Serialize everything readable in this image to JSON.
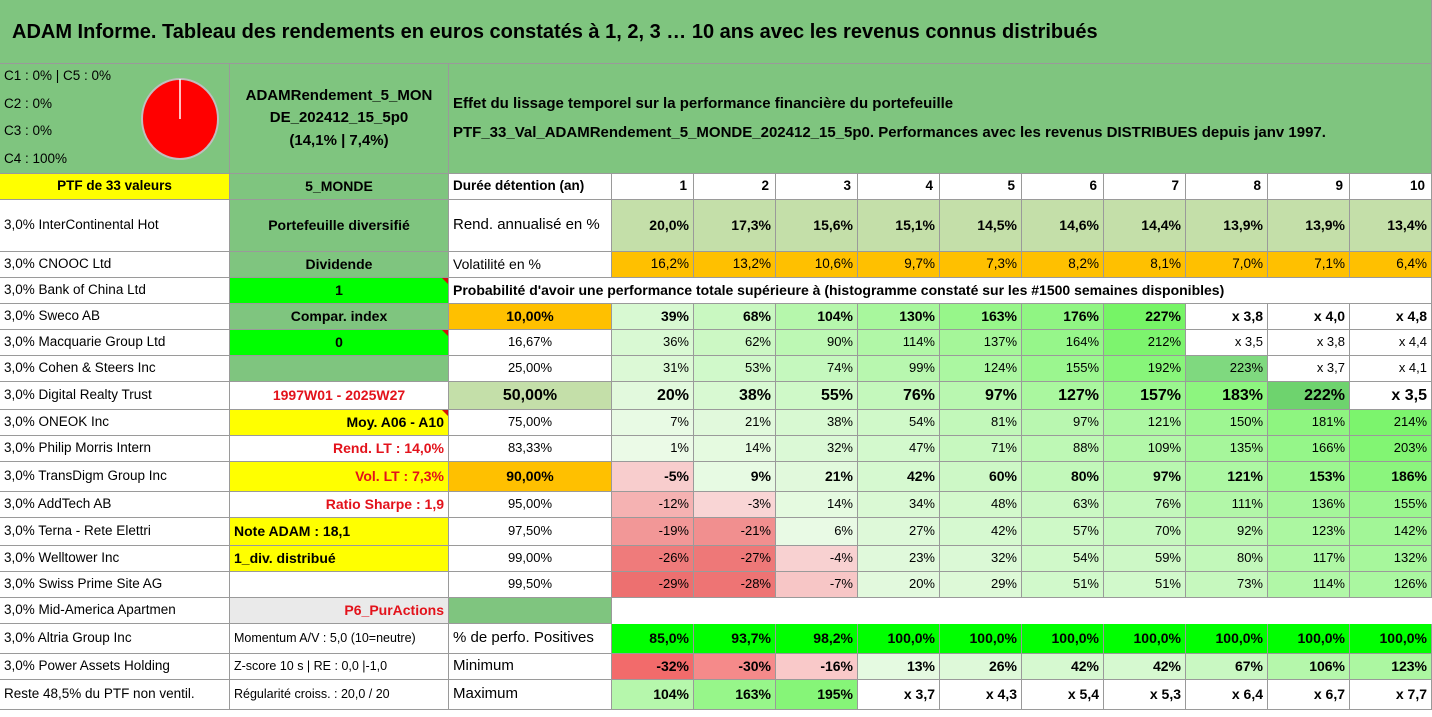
{
  "title": "ADAM Informe. Tableau des rendements en euros constatés à 1, 2, 3 … 10 ans avec les revenus connus distribués",
  "legend": [
    "C1 : 0% | C5 : 0%",
    "C2 : 0%",
    "C3 : 0%",
    "C4 : 100%"
  ],
  "pie": {
    "color": "#ff0000",
    "label": "C4"
  },
  "fund": {
    "line1": "ADAMRendement_5_MON",
    "line2": "DE_202412_15_5p0",
    "line3": "(14,1% | 7,4%)"
  },
  "effect": {
    "line1": "Effet du lissage temporel sur la performance financière du portefeuille",
    "line2": "PTF_33_Val_ADAMRendement_5_MONDE_202412_15_5p0. Performances avec les revenus DISTRIBUES depuis janv 1997."
  },
  "ptf_label": "PTF de 33 valeurs",
  "holdings": [
    "3,0% InterContinental Hot",
    "3,0% CNOOC Ltd",
    "3,0% Bank of China Ltd",
    "3,0% Sweco AB",
    "3,0% Macquarie Group Ltd",
    "3,0% Cohen & Steers Inc",
    "3,0% Digital Realty Trust",
    "3,0% ONEOK Inc",
    "3,0% Philip Morris Intern",
    "3,0% TransDigm Group Inc",
    "3,0% AddTech AB",
    "3,0% Terna - Rete Elettri",
    "3,0% Welltower Inc",
    "3,0% Swiss Prime Site AG",
    "3,0% Mid-America Apartmen",
    "3,0% Altria Group Inc",
    "3,0% Power Assets Holding",
    "Reste 48,5% du PTF non ventil."
  ],
  "col2": {
    "monde": "5_MONDE",
    "diversifie": "Portefeuille diversifié",
    "dividende": "Dividende",
    "one": "1",
    "compar": "Compar. index",
    "zero": "0",
    "empty": "",
    "period": "1997W01 - 2025W27",
    "moy": "Moy. A06 - A10",
    "rend_lt": "Rend. LT : 14,0%",
    "vol_lt": "Vol. LT : 7,3%",
    "sharpe": "Ratio Sharpe : 1,9",
    "note": "Note ADAM : 18,1",
    "div": "1_div. distribué",
    "empty2": "",
    "p6": "P6_PurActions",
    "momentum": "Momentum A/V : 5,0 (10=neutre)",
    "zscore": "Z-score 10 s | RE : 0,0 |-1,0",
    "regularite": "Régularité croiss. : 20,0 / 20"
  },
  "headers": {
    "duree": "Durée détention (an)",
    "years": [
      "1",
      "2",
      "3",
      "4",
      "5",
      "6",
      "7",
      "8",
      "9",
      "10"
    ]
  },
  "rend": {
    "label": "Rend. annualisé en %",
    "values": [
      "20,0%",
      "17,3%",
      "15,6%",
      "15,1%",
      "14,5%",
      "14,6%",
      "14,4%",
      "13,9%",
      "13,9%",
      "13,4%"
    ]
  },
  "vol": {
    "label": "Volatilité en %",
    "values": [
      "16,2%",
      "13,2%",
      "10,6%",
      "9,7%",
      "7,3%",
      "8,2%",
      "8,1%",
      "7,0%",
      "7,1%",
      "6,4%"
    ]
  },
  "proba_title": "Probabilité d'avoir une performance totale supérieure à (histogramme constaté sur les #1500 semaines disponibles)",
  "proba": [
    {
      "p": "10,00%",
      "values": [
        "39%",
        "68%",
        "104%",
        "130%",
        "163%",
        "176%",
        "227%",
        "x 3,8",
        "x 4,0",
        "x 4,8"
      ]
    },
    {
      "p": "16,67%",
      "values": [
        "36%",
        "62%",
        "90%",
        "114%",
        "137%",
        "164%",
        "212%",
        "x 3,5",
        "x 3,8",
        "x 4,4"
      ]
    },
    {
      "p": "25,00%",
      "values": [
        "31%",
        "53%",
        "74%",
        "99%",
        "124%",
        "155%",
        "192%",
        "223%",
        "x 3,7",
        "x 4,1"
      ]
    },
    {
      "p": "50,00%",
      "values": [
        "20%",
        "38%",
        "55%",
        "76%",
        "97%",
        "127%",
        "157%",
        "183%",
        "222%",
        "x 3,5"
      ]
    },
    {
      "p": "75,00%",
      "values": [
        "7%",
        "21%",
        "38%",
        "54%",
        "81%",
        "97%",
        "121%",
        "150%",
        "181%",
        "214%"
      ]
    },
    {
      "p": "83,33%",
      "values": [
        "1%",
        "14%",
        "32%",
        "47%",
        "71%",
        "88%",
        "109%",
        "135%",
        "166%",
        "203%"
      ]
    },
    {
      "p": "90,00%",
      "values": [
        "-5%",
        "9%",
        "21%",
        "42%",
        "60%",
        "80%",
        "97%",
        "121%",
        "153%",
        "186%"
      ]
    },
    {
      "p": "95,00%",
      "values": [
        "-12%",
        "-3%",
        "14%",
        "34%",
        "48%",
        "63%",
        "76%",
        "111%",
        "136%",
        "155%"
      ]
    },
    {
      "p": "97,50%",
      "values": [
        "-19%",
        "-21%",
        "6%",
        "27%",
        "42%",
        "57%",
        "70%",
        "92%",
        "123%",
        "142%"
      ]
    },
    {
      "p": "99,00%",
      "values": [
        "-26%",
        "-27%",
        "-4%",
        "23%",
        "32%",
        "54%",
        "59%",
        "80%",
        "117%",
        "132%"
      ]
    },
    {
      "p": "99,50%",
      "values": [
        "-29%",
        "-28%",
        "-7%",
        "20%",
        "29%",
        "51%",
        "51%",
        "73%",
        "114%",
        "126%"
      ]
    }
  ],
  "positives": {
    "label": "% de perfo. Positives",
    "values": [
      "85,0%",
      "93,7%",
      "98,2%",
      "100,0%",
      "100,0%",
      "100,0%",
      "100,0%",
      "100,0%",
      "100,0%",
      "100,0%"
    ]
  },
  "minimum": {
    "label": "Minimum",
    "values": [
      "-32%",
      "-30%",
      "-16%",
      "13%",
      "26%",
      "42%",
      "42%",
      "67%",
      "106%",
      "123%"
    ]
  },
  "maximum": {
    "label": "Maximum",
    "values": [
      "104%",
      "163%",
      "195%",
      "x 3,7",
      "x 4,3",
      "x 5,4",
      "x 5,3",
      "x 6,4",
      "x 6,7",
      "x 7,7"
    ]
  },
  "colors": {
    "header_green": "#7fc57f",
    "bright_green": "#00ff00",
    "yellow": "#ffff00",
    "orange": "#ffc000",
    "rend_green": "#c4dfa9",
    "red": "#e3121b"
  }
}
